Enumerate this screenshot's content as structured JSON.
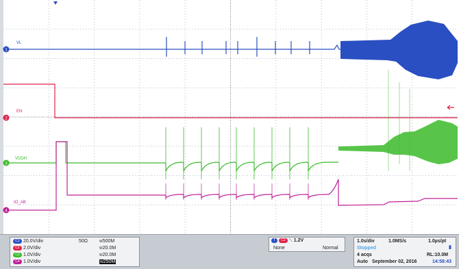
{
  "channels": [
    {
      "id": "C1",
      "label": "VL",
      "color": "#2a4fc2",
      "scale": "20.0V/div",
      "impedance": "50Ω",
      "bw": "500M",
      "bw_sub": "W"
    },
    {
      "id": "C2",
      "label": "EN",
      "color": "#e0234a",
      "scale": "2.0V/div",
      "impedance": "",
      "bw": "20.0M",
      "bw_sub": "W"
    },
    {
      "id": "C3",
      "label": "VDDH",
      "color": "#3bbb2a",
      "scale": "1.0V/div",
      "impedance": "",
      "bw": "20.0M",
      "bw_sub": "W"
    },
    {
      "id": "C4",
      "label": "IO_AB",
      "color": "#c0219a",
      "scale": "1.0V/div",
      "impedance": "",
      "bw": "250M",
      "bw_sub": "W"
    }
  ],
  "trigger": {
    "source": "C2",
    "level": "1.2V",
    "coupling": "None",
    "mode": "Normal"
  },
  "timebase": {
    "scale": "1.0s/div",
    "rate": "1.0MS/s",
    "resolution": "1.0µs/pt",
    "state": "Stopped",
    "acqs": "4 acqs",
    "record_length": "RL:10.0M",
    "mode": "Auto",
    "date": "September 02, 2016",
    "time": "14:58:43"
  },
  "colors": {
    "grid": "#9aa3b0",
    "axis": "#7a8494",
    "panel_bg": "#c7ccd2"
  }
}
